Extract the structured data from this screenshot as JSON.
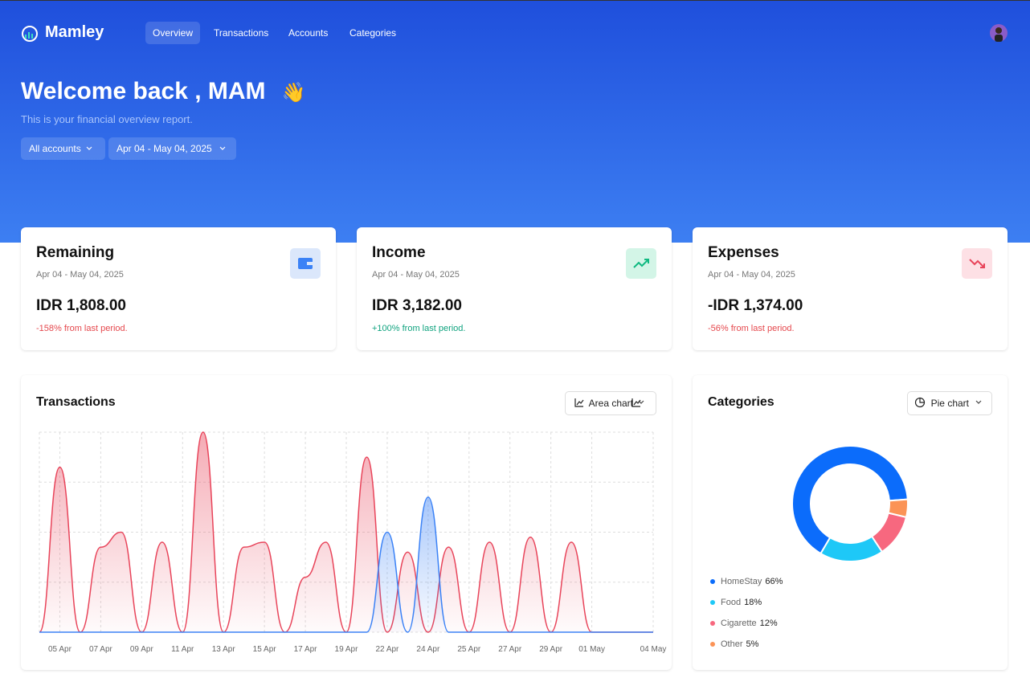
{
  "nav": {
    "brand": "Mamley",
    "links": [
      "Overview",
      "Transactions",
      "Accounts",
      "Categories"
    ]
  },
  "header": {
    "title": "Welcome back , MAM",
    "emoji": "👋",
    "subtitle": "This is your financial overview report.",
    "filters": [
      "All accounts",
      "Apr 04 - May 04, 2025"
    ]
  },
  "cards": [
    {
      "title": "Remaining",
      "period": "Apr 04 - May 04, 2025",
      "amount": "IDR 1,808.00",
      "change": "-158% from last period."
    },
    {
      "title": "Income",
      "period": "Apr 04 - May 04, 2025",
      "amount": "IDR 3,182.00",
      "change": "+100% from last period."
    },
    {
      "title": "Expenses",
      "period": "Apr 04 - May 04, 2025",
      "amount": "-IDR 1,374.00",
      "change": "-56% from last period."
    }
  ],
  "transactions": {
    "title": "Transactions",
    "toggle": "Area chart",
    "chart_data": {
      "type": "area",
      "categories": [
        null,
        "05 Apr",
        null,
        "07 Apr",
        null,
        "09 Apr",
        null,
        "11 Apr",
        null,
        "13 Apr",
        null,
        "15 Apr",
        null,
        "17 Apr",
        null,
        "19 Apr",
        null,
        "22 Apr",
        null,
        "24 Apr",
        null,
        "25 Apr",
        null,
        "27 Apr",
        null,
        "29 Apr",
        null,
        "01 May",
        null,
        null,
        "04 May"
      ],
      "series": [
        {
          "color": "#e8445a",
          "values": [
            0,
            3.3,
            0,
            1.7,
            2.0,
            0,
            1.8,
            0,
            4.0,
            0,
            1.7,
            1.8,
            0,
            1.1,
            1.8,
            0,
            3.5,
            0,
            1.6,
            0,
            1.7,
            0,
            1.8,
            0,
            1.9,
            0,
            1.8,
            0,
            0,
            0,
            0
          ]
        },
        {
          "color": "#3b82f6",
          "values": [
            0,
            0,
            0,
            0,
            0,
            0,
            0,
            0,
            0,
            0,
            0,
            0,
            0,
            0,
            0,
            0,
            0,
            2.0,
            0,
            2.7,
            0,
            0,
            0,
            0,
            0,
            0,
            0,
            0,
            0,
            0,
            0
          ]
        }
      ],
      "ylim": [
        0,
        4
      ],
      "yticks": [
        0,
        1,
        2,
        3,
        4
      ],
      "grid": true
    }
  },
  "categories_panel": {
    "title": "Categories",
    "toggle": "Pie chart",
    "chart_data": {
      "type": "donut",
      "categories": [
        "HomeStay",
        "Food",
        "Cigarette",
        "Other"
      ],
      "values": [
        66,
        18,
        12,
        5
      ],
      "value_labels": [
        "66%",
        "18%",
        "12%",
        "5%"
      ],
      "colors": [
        "#0b6cfb",
        "#1ec8f7",
        "#f7687f",
        "#fb9356"
      ]
    }
  }
}
